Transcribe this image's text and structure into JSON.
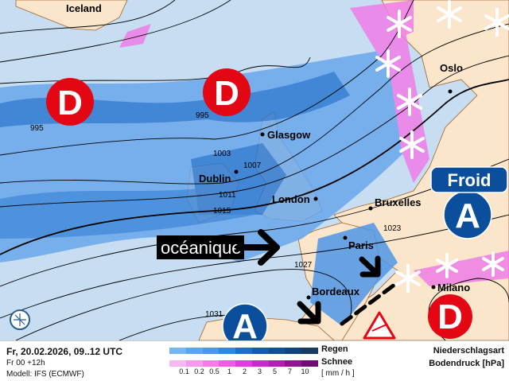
{
  "map": {
    "cities": [
      "Iceland",
      "Oslo",
      "Glasgow",
      "Dublin",
      "London",
      "Bruxelles",
      "Paris",
      "Bordeaux",
      "Milano"
    ],
    "isobars": [
      "995",
      "995",
      "1003",
      "1007",
      "1011",
      "1015",
      "1023",
      "1027",
      "1031"
    ],
    "pressure_symbols": {
      "low": "D",
      "high": "A"
    },
    "froid_label": "Froid",
    "oceanique_label": "océanique",
    "colors": {
      "sea": "#c6ddf2",
      "land": "#fbe6cc",
      "rain": "#4f97e6",
      "rain_heavy": "#2c78d2",
      "snow": "#f07de8",
      "low": "#e30613",
      "high": "#0b4f9c"
    },
    "icons": [
      "snowflake-icon",
      "warning-triangle-icon",
      "globe-icon",
      "arrow-icon"
    ]
  },
  "footer": {
    "date": "Fr, 20.02.2026, 09..12 UTC",
    "run": "Fr 00 +12h",
    "model": "Modell: IFS (ECMWF)",
    "rain_label": "Regen",
    "snow_label": "Schnee",
    "unit": "[ mm / h ]",
    "ticks": [
      "0.1",
      "0.2",
      "0.5",
      "1",
      "2",
      "3",
      "5",
      "7",
      "10"
    ],
    "title1": "Niederschlagsart",
    "title2": "Bodendruck [hPa]",
    "rain_colors": [
      "#74b6f2",
      "#5aa5ee",
      "#4a97e6",
      "#2f86de",
      "#1f6fc6",
      "#145ca8",
      "#0f4f92",
      "#0d447e",
      "#163a60"
    ],
    "snow_colors": [
      "#f7b8f2",
      "#f59bef",
      "#f07de8",
      "#ea5ee2",
      "#df3fd8",
      "#c92cc4",
      "#b01fae",
      "#8e1690",
      "#6c0f70"
    ]
  }
}
